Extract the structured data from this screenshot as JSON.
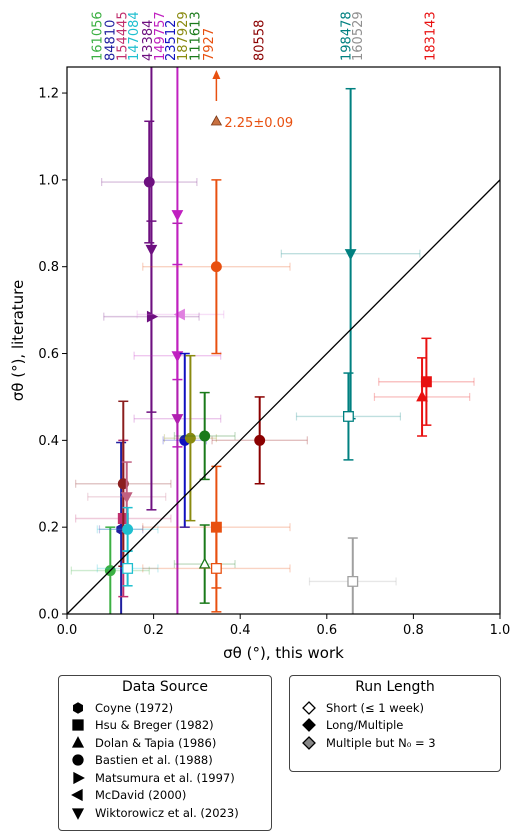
{
  "chart_data": {
    "type": "scatter",
    "xlabel": "σθ (°), this work",
    "ylabel": "σθ (°), literature",
    "xlim": [
      0,
      1.0
    ],
    "ylim": [
      0,
      1.26
    ],
    "x_ticks": [
      "0.0",
      "0.2",
      "0.4",
      "0.6",
      "0.8",
      "1.0"
    ],
    "y_ticks": [
      "0.0",
      "0.2",
      "0.4",
      "0.6",
      "0.8",
      "1.0",
      "1.2"
    ],
    "reference_line": "y = x",
    "top_labels": [
      {
        "text": "161056",
        "x": 0.07,
        "color": "#3cb043"
      },
      {
        "text": "84810",
        "x": 0.1,
        "color": "#1f1f9f"
      },
      {
        "text": "154445",
        "x": 0.128,
        "color": "#c0306e"
      },
      {
        "text": "147084",
        "x": 0.155,
        "color": "#1fbfcf"
      },
      {
        "text": "43384",
        "x": 0.187,
        "color": "#6e1080"
      },
      {
        "text": "149757",
        "x": 0.215,
        "color": "#c020c0"
      },
      {
        "text": "23512",
        "x": 0.24,
        "color": "#1010c0"
      },
      {
        "text": "187929",
        "x": 0.268,
        "color": "#8a8a10"
      },
      {
        "text": "111613",
        "x": 0.297,
        "color": "#1a7a1a"
      },
      {
        "text": "7927",
        "x": 0.328,
        "color": "#e85010"
      },
      {
        "text": "80558",
        "x": 0.445,
        "color": "#8b0000"
      },
      {
        "text": "198478",
        "x": 0.645,
        "color": "#008080"
      },
      {
        "text": "160529",
        "x": 0.672,
        "color": "#909090"
      },
      {
        "text": "183143",
        "x": 0.84,
        "color": "#e81010"
      }
    ],
    "offscale_annotation": {
      "text": "2.25±0.09",
      "x": 0.345,
      "color": "#e85010"
    },
    "points": [
      {
        "star": "161056",
        "x": 0.1,
        "y": 0.1,
        "yerr": 0.1,
        "xerr": 0.09,
        "marker": "circle",
        "filled": true,
        "color": "#3cb043"
      },
      {
        "star": "84810",
        "x": 0.125,
        "y": 0.195,
        "yerr": 0.2,
        "xerr": 0.05,
        "marker": "hexagon",
        "filled": true,
        "color": "#1f1f9f"
      },
      {
        "star": "154445",
        "x": 0.13,
        "y": 0.22,
        "yerr": 0.18,
        "xerr": 0.11,
        "marker": "square",
        "filled": true,
        "color": "#c0306e"
      },
      {
        "star": "154445",
        "x": 0.13,
        "y": 0.3,
        "yerr": 0.19,
        "xerr": 0.11,
        "marker": "circle",
        "filled": true,
        "color": "#8b1e1e"
      },
      {
        "star": "154445",
        "x": 0.138,
        "y": 0.27,
        "yerr": 0.08,
        "xerr": 0.09,
        "marker": "triangle-down",
        "filled": true,
        "color": "#c06080"
      },
      {
        "star": "147084",
        "x": 0.14,
        "y": 0.195,
        "yerr": 0.05,
        "xerr": 0.07,
        "marker": "circle",
        "filled": true,
        "color": "#1fbfcf"
      },
      {
        "star": "147084",
        "x": 0.14,
        "y": 0.105,
        "yerr": 0.04,
        "xerr": 0.07,
        "marker": "square",
        "filled": false,
        "color": "#1fbfcf"
      },
      {
        "star": "43384",
        "x": 0.19,
        "y": 0.995,
        "yerr": 0.14,
        "xerr": 0.11,
        "marker": "circle",
        "filled": true,
        "color": "#6e1080"
      },
      {
        "star": "43384",
        "x": 0.195,
        "y": 0.685,
        "yerr": 0.22,
        "xerr": 0.11,
        "marker": "triangle-right",
        "filled": true,
        "color": "#6e1080"
      },
      {
        "star": "43384",
        "x": 0.195,
        "y": 0.84,
        "yerr": 0.6,
        "xerr": 0.0,
        "marker": "triangle-down",
        "filled": true,
        "color": "#6e1080"
      },
      {
        "star": "149757",
        "x": 0.255,
        "y": 0.595,
        "yerr": 0.21,
        "xerr": 0.1,
        "marker": "triangle-down",
        "filled": true,
        "color": "#c020c0"
      },
      {
        "star": "149757",
        "x": 0.255,
        "y": 0.45,
        "yerr": 0.45,
        "xerr": 0.1,
        "marker": "triangle-down",
        "filled": true,
        "color": "#b020b0"
      },
      {
        "star": "149757",
        "x": 0.262,
        "y": 0.69,
        "yerr": 0.0,
        "xerr": 0.1,
        "marker": "triangle-left",
        "filled": true,
        "color": "#e080e0"
      },
      {
        "star": "149757",
        "x": 0.255,
        "y": 0.92,
        "yerr": 0.38,
        "xerr": 0.0,
        "marker": "triangle-down",
        "filled": true,
        "color": "#c020c0"
      },
      {
        "star": "23512",
        "x": 0.272,
        "y": 0.4,
        "yerr": 0.2,
        "xerr": 0.05,
        "marker": "circle",
        "filled": true,
        "color": "#1010c0"
      },
      {
        "star": "187929",
        "x": 0.285,
        "y": 0.405,
        "yerr": 0.19,
        "xerr": 0.06,
        "marker": "circle",
        "filled": true,
        "color": "#8a8a10"
      },
      {
        "star": "111613",
        "x": 0.318,
        "y": 0.41,
        "yerr": 0.1,
        "xerr": 0.07,
        "marker": "circle",
        "filled": true,
        "color": "#1a7a1a"
      },
      {
        "star": "111613",
        "x": 0.318,
        "y": 0.115,
        "yerr": 0.09,
        "xerr": 0.07,
        "marker": "triangle-up",
        "filled": false,
        "color": "#1a7a1a"
      },
      {
        "star": "7927",
        "x": 0.345,
        "y": 0.8,
        "yerr": 0.2,
        "xerr": 0.17,
        "marker": "circle",
        "filled": true,
        "color": "#e85010"
      },
      {
        "star": "7927",
        "x": 0.345,
        "y": 0.2,
        "yerr": 0.14,
        "xerr": 0.17,
        "marker": "square",
        "filled": true,
        "color": "#e85010"
      },
      {
        "star": "7927",
        "x": 0.345,
        "y": 0.105,
        "yerr": 0.1,
        "xerr": 0.17,
        "marker": "square",
        "filled": false,
        "color": "#e85010"
      },
      {
        "star": "80558",
        "x": 0.445,
        "y": 0.4,
        "yerr": 0.1,
        "xerr": 0.11,
        "marker": "circle",
        "filled": true,
        "color": "#8b0000"
      },
      {
        "star": "198478",
        "x": 0.655,
        "y": 0.83,
        "yerr": 0.38,
        "xerr": 0.16,
        "marker": "triangle-down",
        "filled": true,
        "color": "#008080"
      },
      {
        "star": "198478",
        "x": 0.65,
        "y": 0.455,
        "yerr": 0.1,
        "xerr": 0.12,
        "marker": "square",
        "filled": false,
        "color": "#008080"
      },
      {
        "star": "160529",
        "x": 0.66,
        "y": 0.075,
        "yerr": 0.1,
        "xerr": 0.1,
        "marker": "square",
        "filled": false,
        "color": "#a0a0a0"
      },
      {
        "star": "183143",
        "x": 0.83,
        "y": 0.535,
        "yerr": 0.1,
        "xerr": 0.11,
        "marker": "square",
        "filled": true,
        "color": "#e81010"
      },
      {
        "star": "183143",
        "x": 0.82,
        "y": 0.5,
        "yerr": 0.09,
        "xerr": 0.11,
        "marker": "triangle-up",
        "filled": true,
        "color": "#e81010"
      }
    ]
  },
  "legend_source": {
    "title": "Data Source",
    "items": [
      {
        "marker": "hexagon",
        "label": "Coyne (1972)"
      },
      {
        "marker": "square",
        "label": "Hsu & Breger (1982)"
      },
      {
        "marker": "triangle-up",
        "label": "Dolan & Tapia (1986)"
      },
      {
        "marker": "circle",
        "label": "Bastien et al. (1988)"
      },
      {
        "marker": "triangle-right",
        "label": "Matsumura et al. (1997)"
      },
      {
        "marker": "triangle-left",
        "label": "McDavid (2000)"
      },
      {
        "marker": "triangle-down",
        "label": "Wiktorowicz et al. (2023)"
      }
    ]
  },
  "legend_runlength": {
    "title": "Run Length",
    "items": [
      {
        "style": "open",
        "label": "Short (≤ 1 week)"
      },
      {
        "style": "filled",
        "label": "Long/Multiple"
      },
      {
        "style": "grey",
        "label": "Multiple but N₀ = 3"
      }
    ]
  }
}
